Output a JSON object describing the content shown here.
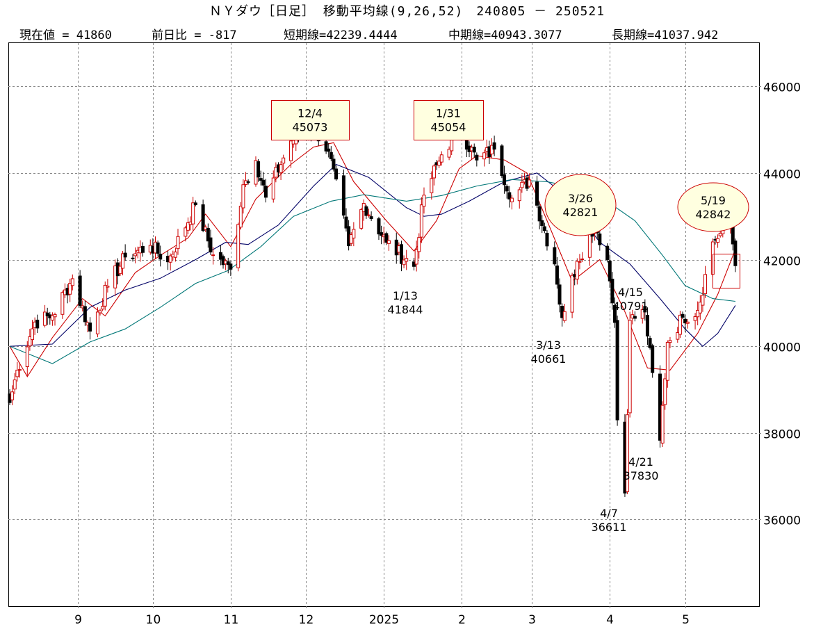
{
  "header": {
    "title": "ＮＹダウ［日足］ 移動平均線(9,26,52)　240805 － 250521",
    "current": "現在値 = 41860",
    "change": "前日比 = -817",
    "short_ma": "短期線=42239.4444",
    "mid_ma": "中期線=40943.3077",
    "long_ma": "長期線=41037.942"
  },
  "colors": {
    "short_ma": "#cc0000",
    "mid_ma": "#000066",
    "long_ma": "#007777",
    "grid": "#888888",
    "box_fill": "#ffffe0",
    "box_stroke": "#cc0000"
  },
  "chart_data": {
    "type": "candlestick",
    "title": "ＮＹダウ［日足］ 移動平均線(9,26,52)",
    "period": "240805 - 250521",
    "ylim": [
      34000,
      47000
    ],
    "yticks": [
      36000,
      38000,
      40000,
      42000,
      44000,
      46000
    ],
    "x_labels": [
      {
        "label": "9",
        "month": "2024-09"
      },
      {
        "label": "10",
        "month": "2024-10"
      },
      {
        "label": "11",
        "month": "2024-11"
      },
      {
        "label": "12",
        "month": "2024-12"
      },
      {
        "label": "2025",
        "month": "2025-01"
      },
      {
        "label": "2",
        "month": "2025-02"
      },
      {
        "label": "3",
        "month": "2025-03"
      },
      {
        "label": "4",
        "month": "2025-04"
      },
      {
        "label": "5",
        "month": "2025-05"
      }
    ],
    "grid": true,
    "price_path": [
      [
        "2024-08-05",
        38700
      ],
      [
        "2024-08-08",
        39450
      ],
      [
        "2024-08-15",
        40560
      ],
      [
        "2024-08-22",
        40710
      ],
      [
        "2024-08-30",
        41560
      ],
      [
        "2024-09-06",
        40350
      ],
      [
        "2024-09-13",
        41390
      ],
      [
        "2024-09-20",
        42060
      ],
      [
        "2024-09-30",
        42330
      ],
      [
        "2024-10-07",
        41950
      ],
      [
        "2024-10-18",
        43270
      ],
      [
        "2024-10-25",
        42110
      ],
      [
        "2024-11-01",
        41780
      ],
      [
        "2024-11-06",
        43730
      ],
      [
        "2024-11-11",
        44290
      ],
      [
        "2024-11-15",
        43440
      ],
      [
        "2024-11-25",
        44740
      ],
      [
        "2024-12-04",
        45073
      ],
      [
        "2024-12-10",
        44500
      ],
      [
        "2024-12-18",
        42320
      ],
      [
        "2024-12-24",
        43300
      ],
      [
        "2025-01-02",
        42400
      ],
      [
        "2025-01-13",
        41844
      ],
      [
        "2025-01-17",
        43490
      ],
      [
        "2025-01-24",
        44420
      ],
      [
        "2025-01-31",
        45054
      ],
      [
        "2025-02-07",
        44300
      ],
      [
        "2025-02-14",
        44550
      ],
      [
        "2025-02-21",
        43420
      ],
      [
        "2025-02-28",
        43840
      ],
      [
        "2025-03-10",
        41900
      ],
      [
        "2025-03-13",
        40661
      ],
      [
        "2025-03-19",
        41960
      ],
      [
        "2025-03-26",
        42821
      ],
      [
        "2025-03-31",
        42000
      ],
      [
        "2025-04-03",
        40550
      ],
      [
        "2025-04-04",
        38300
      ],
      [
        "2025-04-07",
        36611
      ],
      [
        "2025-04-09",
        40600
      ],
      [
        "2025-04-15",
        40791
      ],
      [
        "2025-04-21",
        37830
      ],
      [
        "2025-04-24",
        40090
      ],
      [
        "2025-04-30",
        40670
      ],
      [
        "2025-05-06",
        40830
      ],
      [
        "2025-05-12",
        42410
      ],
      [
        "2025-05-19",
        42842
      ],
      [
        "2025-05-21",
        41860
      ]
    ],
    "series": [
      {
        "name": "短期線(9)",
        "points": [
          [
            "2024-08-05",
            40000
          ],
          [
            "2024-08-12",
            39300
          ],
          [
            "2024-08-22",
            40200
          ],
          [
            "2024-09-03",
            41100
          ],
          [
            "2024-09-12",
            40700
          ],
          [
            "2024-09-24",
            41700
          ],
          [
            "2024-10-04",
            42100
          ],
          [
            "2024-10-15",
            42500
          ],
          [
            "2024-10-22",
            43050
          ],
          [
            "2024-11-01",
            42300
          ],
          [
            "2024-11-11",
            43400
          ],
          [
            "2024-11-25",
            44200
          ],
          [
            "2024-12-04",
            44600
          ],
          [
            "2024-12-12",
            44700
          ],
          [
            "2024-12-20",
            43800
          ],
          [
            "2025-01-02",
            42900
          ],
          [
            "2025-01-13",
            42200
          ],
          [
            "2025-01-22",
            42900
          ],
          [
            "2025-01-31",
            44100
          ],
          [
            "2025-02-07",
            44400
          ],
          [
            "2025-02-18",
            44300
          ],
          [
            "2025-02-27",
            44000
          ],
          [
            "2025-03-07",
            42900
          ],
          [
            "2025-03-17",
            41500
          ],
          [
            "2025-03-28",
            42000
          ],
          [
            "2025-04-07",
            40800
          ],
          [
            "2025-04-16",
            39500
          ],
          [
            "2025-04-25",
            39450
          ],
          [
            "2025-05-06",
            40300
          ],
          [
            "2025-05-14",
            41200
          ],
          [
            "2025-05-21",
            42239.4444
          ]
        ]
      },
      {
        "name": "中期線(26)",
        "points": [
          [
            "2024-08-05",
            40000
          ],
          [
            "2024-08-22",
            40050
          ],
          [
            "2024-09-06",
            40900
          ],
          [
            "2024-09-20",
            41300
          ],
          [
            "2024-10-04",
            41570
          ],
          [
            "2024-10-18",
            42000
          ],
          [
            "2024-10-30",
            42400
          ],
          [
            "2024-11-08",
            42350
          ],
          [
            "2024-11-20",
            42800
          ],
          [
            "2024-12-04",
            43700
          ],
          [
            "2024-12-13",
            44200
          ],
          [
            "2024-12-26",
            43900
          ],
          [
            "2025-01-10",
            43200
          ],
          [
            "2025-01-17",
            43000
          ],
          [
            "2025-01-24",
            43050
          ],
          [
            "2025-02-04",
            43350
          ],
          [
            "2025-02-18",
            43800
          ],
          [
            "2025-03-03",
            44000
          ],
          [
            "2025-03-14",
            43500
          ],
          [
            "2025-03-28",
            42400
          ],
          [
            "2025-04-09",
            41900
          ],
          [
            "2025-04-21",
            41100
          ],
          [
            "2025-05-01",
            40400
          ],
          [
            "2025-05-08",
            40000
          ],
          [
            "2025-05-14",
            40300
          ],
          [
            "2025-05-21",
            40943.3077
          ]
        ]
      },
      {
        "name": "長期線(52)",
        "points": [
          [
            "2024-08-05",
            40000
          ],
          [
            "2024-08-22",
            39600
          ],
          [
            "2024-09-06",
            40100
          ],
          [
            "2024-09-20",
            40400
          ],
          [
            "2024-10-04",
            40900
          ],
          [
            "2024-10-18",
            41450
          ],
          [
            "2024-10-31",
            41750
          ],
          [
            "2024-11-13",
            42300
          ],
          [
            "2024-11-26",
            43000
          ],
          [
            "2024-12-11",
            43350
          ],
          [
            "2024-12-24",
            43500
          ],
          [
            "2025-01-10",
            43350
          ],
          [
            "2025-01-24",
            43480
          ],
          [
            "2025-02-07",
            43700
          ],
          [
            "2025-02-21",
            43850
          ],
          [
            "2025-03-07",
            43800
          ],
          [
            "2025-03-20",
            43650
          ],
          [
            "2025-04-01",
            43300
          ],
          [
            "2025-04-11",
            42900
          ],
          [
            "2025-04-22",
            42100
          ],
          [
            "2025-05-01",
            41400
          ],
          [
            "2025-05-12",
            41100
          ],
          [
            "2025-05-21",
            41037.942
          ]
        ]
      }
    ],
    "annotations": [
      {
        "date": "12/4",
        "value": "45073",
        "shape": "box"
      },
      {
        "date": "1/31",
        "value": "45054",
        "shape": "box"
      },
      {
        "date": "1/13",
        "value": "41844",
        "shape": "text"
      },
      {
        "date": "3/13",
        "value": "40661",
        "shape": "text"
      },
      {
        "date": "3/26",
        "value": "42821",
        "shape": "ellipse"
      },
      {
        "date": "4/15",
        "value": "40791",
        "shape": "text"
      },
      {
        "date": "4/21",
        "value": "37830",
        "shape": "text"
      },
      {
        "date": "4/7",
        "value": "36611",
        "shape": "text"
      },
      {
        "date": "5/19",
        "value": "42842",
        "shape": "ellipse"
      }
    ]
  }
}
